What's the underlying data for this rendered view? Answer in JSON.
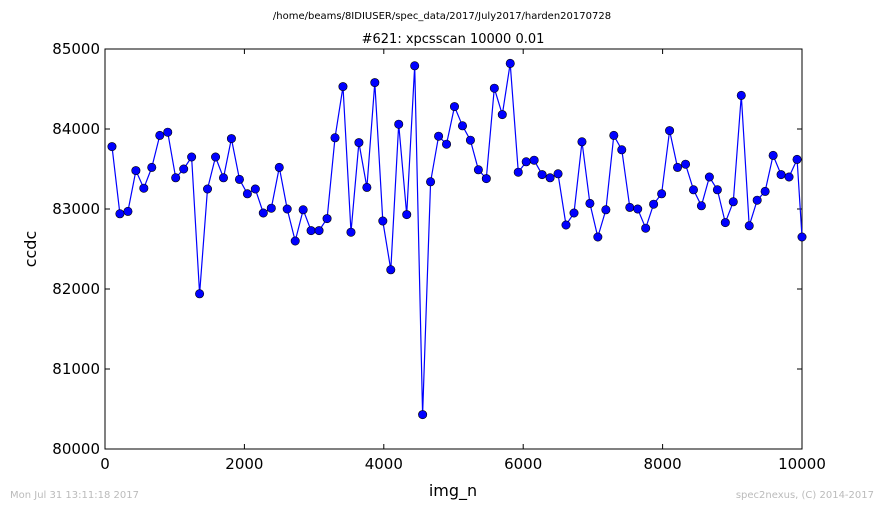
{
  "chart_data": {
    "type": "line",
    "suptitle": "/home/beams/8IDIUSER/spec_data/2017/July2017/harden20170728",
    "title": "#621: xpcsscan 10000 0.01",
    "xlabel": "img_n",
    "ylabel": "ccdc",
    "xlim": [
      0,
      10000
    ],
    "ylim": [
      80000,
      85000
    ],
    "xticks": [
      0,
      2000,
      4000,
      6000,
      8000,
      10000
    ],
    "yticks": [
      80000,
      81000,
      82000,
      83000,
      84000,
      85000
    ],
    "grid": false,
    "legend": "none",
    "color": "#0000ff",
    "x": [
      100,
      214,
      329,
      443,
      557,
      671,
      786,
      900,
      1014,
      1129,
      1243,
      1357,
      1471,
      1586,
      1700,
      1814,
      1929,
      2043,
      2157,
      2271,
      2386,
      2500,
      2614,
      2729,
      2843,
      2957,
      3071,
      3186,
      3300,
      3414,
      3529,
      3643,
      3757,
      3871,
      3986,
      4100,
      4214,
      4329,
      4443,
      4557,
      4671,
      4786,
      4900,
      5014,
      5129,
      5243,
      5357,
      5471,
      5586,
      5700,
      5814,
      5929,
      6043,
      6157,
      6271,
      6386,
      6500,
      6614,
      6729,
      6843,
      6957,
      7071,
      7186,
      7300,
      7414,
      7529,
      7643,
      7757,
      7871,
      7986,
      8100,
      8214,
      8329,
      8443,
      8557,
      8671,
      8786,
      8900,
      9014,
      9129,
      9243,
      9357,
      9471,
      9586,
      9700,
      9814,
      9929,
      10000
    ],
    "y": [
      83780,
      82940,
      82970,
      83480,
      83260,
      83520,
      83920,
      83960,
      83390,
      83500,
      83650,
      81940,
      83250,
      83650,
      83390,
      83880,
      83370,
      83190,
      83250,
      82950,
      83010,
      83520,
      83000,
      82600,
      82990,
      82730,
      82730,
      82880,
      83890,
      84530,
      82710,
      83830,
      83270,
      84580,
      82850,
      82240,
      84060,
      82930,
      84790,
      80430,
      83340,
      83910,
      83810,
      84280,
      84040,
      83860,
      83490,
      83380,
      84510,
      84180,
      84820,
      83460,
      83590,
      83610,
      83430,
      83390,
      83440,
      82800,
      82950,
      83840,
      83070,
      82650,
      82990,
      83920,
      83740,
      83020,
      83000,
      82760,
      83060,
      83190,
      83980,
      83520,
      83560,
      83240,
      83040,
      83400,
      83240,
      82830,
      83090,
      84420,
      82790,
      83110,
      83220,
      83670,
      83430,
      83400,
      83620,
      82650
    ]
  },
  "footer": {
    "left": "Mon Jul 31 13:11:18 2017",
    "right": "spec2nexus, (C) 2014-2017"
  }
}
